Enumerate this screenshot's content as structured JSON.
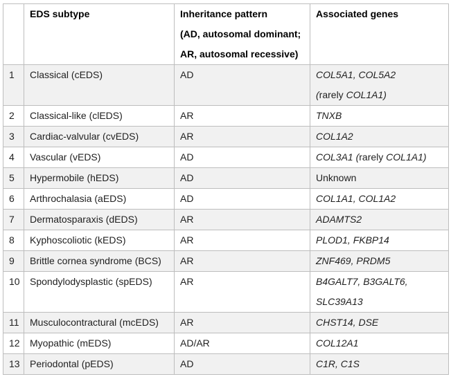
{
  "table": {
    "title_hint": "EDS subtype classification table",
    "colors": {
      "stripe": "#f1f1f1",
      "border": "#bdbdbd",
      "header_text": "#000000",
      "body_text": "#1f1f1f"
    },
    "header": {
      "corner": "",
      "subtype": "EDS subtype",
      "inheritance_lines": [
        "Inheritance pattern",
        "(AD, autosomal dominant;",
        "AR, autosomal recessive)"
      ],
      "genes": "Associated genes"
    },
    "rows": [
      {
        "num": "1",
        "subtype": "Classical (cEDS)",
        "inheritance": "AD",
        "genes": [
          [
            {
              "t": "COL5A1, COL5A2",
              "i": true
            }
          ],
          [
            {
              "t": "(",
              "i": true
            },
            {
              "t": "rarely ",
              "i": false
            },
            {
              "t": "COL1A1)",
              "i": true
            }
          ]
        ]
      },
      {
        "num": "2",
        "subtype": "Classical-like (clEDS)",
        "inheritance": "AR",
        "genes": [
          [
            {
              "t": "TNXB",
              "i": true
            }
          ]
        ]
      },
      {
        "num": "3",
        "subtype": "Cardiac-valvular (cvEDS)",
        "inheritance": "AR",
        "genes": [
          [
            {
              "t": "COL1A2",
              "i": true
            }
          ]
        ]
      },
      {
        "num": "4",
        "subtype": "Vascular (vEDS)",
        "inheritance": "AD",
        "genes": [
          [
            {
              "t": "COL3A1 (",
              "i": true
            },
            {
              "t": "rarely ",
              "i": false
            },
            {
              "t": "COL1A1)",
              "i": true
            }
          ]
        ]
      },
      {
        "num": "5",
        "subtype": "Hypermobile (hEDS)",
        "inheritance": "AD",
        "genes": [
          [
            {
              "t": "Unknown",
              "i": false
            }
          ]
        ]
      },
      {
        "num": "6",
        "subtype": "Arthrochalasia (aEDS)",
        "inheritance": "AD",
        "genes": [
          [
            {
              "t": "COL1A1, COL1A2",
              "i": true
            }
          ]
        ]
      },
      {
        "num": "7",
        "subtype": "Dermatosparaxis (dEDS)",
        "inheritance": "AR",
        "genes": [
          [
            {
              "t": "ADAMTS2",
              "i": true
            }
          ]
        ]
      },
      {
        "num": "8",
        "subtype": "Kyphoscoliotic (kEDS)",
        "inheritance": "AR",
        "genes": [
          [
            {
              "t": "PLOD1, FKBP14",
              "i": true
            }
          ]
        ]
      },
      {
        "num": "9",
        "subtype": "Brittle cornea syndrome (BCS)",
        "inheritance": "AR",
        "genes": [
          [
            {
              "t": "ZNF469, PRDM5",
              "i": true
            }
          ]
        ]
      },
      {
        "num": "10",
        "subtype": "Spondylodysplastic (spEDS)",
        "inheritance": "AR",
        "genes": [
          [
            {
              "t": "B4GALT7, B3GALT6,",
              "i": true
            }
          ],
          [
            {
              "t": "SLC39A13",
              "i": true
            }
          ]
        ]
      },
      {
        "num": "11",
        "subtype": "Musculocontractural (mcEDS)",
        "inheritance": "AR",
        "genes": [
          [
            {
              "t": "CHST14, DSE",
              "i": true
            }
          ]
        ]
      },
      {
        "num": "12",
        "subtype": "Myopathic (mEDS)",
        "inheritance": "AD/AR",
        "genes": [
          [
            {
              "t": "COL12A1",
              "i": true
            }
          ]
        ]
      },
      {
        "num": "13",
        "subtype": "Periodontal (pEDS)",
        "inheritance": "AD",
        "genes": [
          [
            {
              "t": "C1R, C1S",
              "i": true
            }
          ]
        ]
      }
    ]
  }
}
